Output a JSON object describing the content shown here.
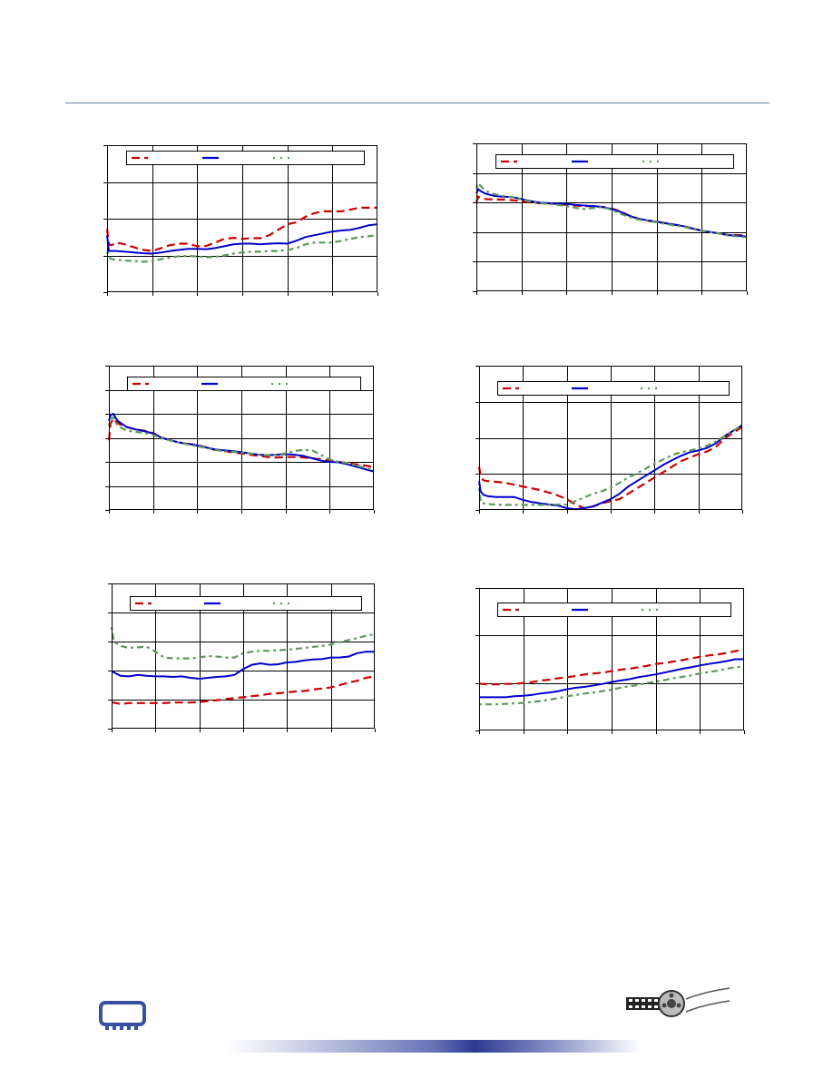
{
  "header": {
    "rule_color": "#6b7fae"
  },
  "colors": {
    "series_1": "#cc0000",
    "series_2": "#0000cc",
    "series_3": "#5a9a5a"
  },
  "chart_data": [
    {
      "type": "line",
      "x": [
        0,
        2,
        5,
        10,
        20,
        30,
        40,
        50,
        60,
        70,
        80,
        90,
        100,
        110,
        120,
        130,
        140,
        150,
        160,
        170,
        180,
        190,
        200,
        210,
        220,
        230,
        240,
        250,
        260,
        270,
        280,
        290,
        300
      ],
      "xlim": [
        0,
        300
      ],
      "ylim": [
        -1,
        3
      ],
      "series": [
        {
          "style": "dashed",
          "color": "#cc0000",
          "values": [
            0.72,
            0.3,
            0.28,
            0.35,
            0.3,
            0.22,
            0.15,
            0.12,
            0.2,
            0.28,
            0.32,
            0.32,
            0.25,
            0.26,
            0.35,
            0.45,
            0.48,
            0.45,
            0.47,
            0.47,
            0.55,
            0.7,
            0.85,
            0.9,
            1.05,
            1.15,
            1.2,
            1.2,
            1.2,
            1.25,
            1.3,
            1.3,
            1.3
          ]
        },
        {
          "style": "solid",
          "color": "#0000cc",
          "values": [
            0.55,
            0.12,
            0.12,
            0.12,
            0.1,
            0.08,
            0.06,
            0.05,
            0.08,
            0.12,
            0.15,
            0.18,
            0.18,
            0.17,
            0.2,
            0.25,
            0.3,
            0.32,
            0.32,
            0.3,
            0.32,
            0.33,
            0.32,
            0.4,
            0.5,
            0.55,
            0.6,
            0.65,
            0.68,
            0.7,
            0.75,
            0.82,
            0.85
          ]
        },
        {
          "style": "dotted",
          "color": "#5a9a5a",
          "values": [
            0.1,
            -0.05,
            -0.1,
            -0.12,
            -0.14,
            -0.15,
            -0.17,
            -0.16,
            -0.1,
            -0.06,
            -0.02,
            -0.01,
            -0.03,
            -0.05,
            -0.04,
            0.0,
            0.05,
            0.08,
            0.1,
            0.1,
            0.12,
            0.12,
            0.15,
            0.2,
            0.3,
            0.35,
            0.35,
            0.35,
            0.4,
            0.45,
            0.5,
            0.52,
            0.55
          ]
        }
      ]
    },
    {
      "type": "line",
      "x": [
        0,
        2,
        5,
        10,
        20,
        30,
        40,
        50,
        60,
        70,
        80,
        90,
        100,
        110,
        120,
        130,
        140,
        150,
        160,
        170,
        180,
        190,
        200,
        210,
        220,
        230,
        240,
        250,
        260,
        270,
        280,
        290,
        300
      ],
      "xlim": [
        0,
        300
      ],
      "ylim": [
        0,
        5
      ],
      "series": [
        {
          "style": "dashed",
          "color": "#cc0000",
          "values": [
            3.0,
            3.2,
            3.15,
            3.12,
            3.1,
            3.1,
            3.08,
            3.05,
            3.0,
            2.98,
            2.97,
            2.95,
            2.92,
            2.9,
            2.88,
            2.88,
            2.85,
            2.8,
            2.7,
            2.55,
            2.45,
            2.38,
            2.35,
            2.3,
            2.25,
            2.2,
            2.12,
            2.05,
            2.0,
            1.95,
            1.9,
            1.9,
            1.88
          ]
        },
        {
          "style": "solid",
          "color": "#0000cc",
          "values": [
            3.3,
            3.45,
            3.38,
            3.3,
            3.22,
            3.2,
            3.18,
            3.12,
            3.05,
            3.0,
            2.98,
            2.96,
            2.95,
            2.92,
            2.9,
            2.88,
            2.85,
            2.78,
            2.68,
            2.55,
            2.45,
            2.4,
            2.35,
            2.3,
            2.25,
            2.2,
            2.12,
            2.05,
            2.0,
            1.95,
            1.9,
            1.88,
            1.85
          ]
        },
        {
          "style": "dotted",
          "color": "#5a9a5a",
          "values": [
            3.5,
            3.65,
            3.55,
            3.4,
            3.28,
            3.22,
            3.18,
            3.1,
            3.03,
            2.98,
            2.95,
            2.92,
            2.88,
            2.82,
            2.78,
            2.82,
            2.85,
            2.75,
            2.62,
            2.5,
            2.42,
            2.38,
            2.33,
            2.28,
            2.22,
            2.18,
            2.1,
            2.05,
            2.0,
            1.95,
            1.88,
            1.85,
            1.82
          ]
        }
      ]
    },
    {
      "type": "line",
      "x": [
        0,
        2,
        5,
        10,
        20,
        30,
        40,
        50,
        60,
        70,
        80,
        90,
        100,
        110,
        120,
        130,
        140,
        150,
        160,
        170,
        180,
        190,
        200,
        210,
        220,
        230,
        240,
        250,
        260,
        270,
        280,
        290,
        300
      ],
      "xlim": [
        0,
        300
      ],
      "ylim": [
        0,
        6
      ],
      "series": [
        {
          "style": "dashed",
          "color": "#cc0000",
          "values": [
            2.9,
            3.6,
            3.8,
            3.6,
            3.45,
            3.35,
            3.3,
            3.2,
            3.0,
            2.9,
            2.8,
            2.75,
            2.7,
            2.6,
            2.5,
            2.45,
            2.4,
            2.35,
            2.3,
            2.25,
            2.2,
            2.18,
            2.2,
            2.2,
            2.18,
            2.15,
            2.1,
            2.05,
            2.0,
            1.95,
            1.9,
            1.85,
            1.78
          ]
        },
        {
          "style": "solid",
          "color": "#0000cc",
          "values": [
            3.7,
            3.95,
            4.0,
            3.7,
            3.45,
            3.35,
            3.28,
            3.18,
            3.0,
            2.9,
            2.8,
            2.75,
            2.68,
            2.6,
            2.52,
            2.48,
            2.45,
            2.4,
            2.35,
            2.3,
            2.28,
            2.3,
            2.32,
            2.3,
            2.25,
            2.15,
            2.05,
            2.0,
            1.98,
            1.9,
            1.8,
            1.7,
            1.6
          ]
        },
        {
          "style": "dotted",
          "color": "#5a9a5a",
          "values": [
            3.5,
            3.8,
            3.85,
            3.5,
            3.3,
            3.25,
            3.2,
            3.12,
            2.98,
            2.88,
            2.8,
            2.72,
            2.65,
            2.58,
            2.5,
            2.45,
            2.42,
            2.38,
            2.35,
            2.3,
            2.28,
            2.3,
            2.35,
            2.45,
            2.5,
            2.48,
            2.3,
            2.1,
            2.0,
            1.95,
            1.85,
            1.75,
            1.65
          ]
        }
      ]
    },
    {
      "type": "line",
      "x": [
        0,
        2,
        5,
        10,
        20,
        30,
        40,
        50,
        60,
        70,
        80,
        90,
        100,
        110,
        120,
        130,
        140,
        150,
        160,
        170,
        180,
        190,
        200,
        210,
        220,
        230,
        240,
        250,
        260,
        270,
        280,
        290,
        300
      ],
      "xlim": [
        0,
        300
      ],
      "ylim": [
        0,
        4
      ],
      "series": [
        {
          "style": "dashed",
          "color": "#cc0000",
          "values": [
            1.2,
            0.9,
            0.82,
            0.8,
            0.78,
            0.75,
            0.7,
            0.65,
            0.6,
            0.55,
            0.48,
            0.4,
            0.3,
            0.15,
            0.05,
            0.1,
            0.18,
            0.25,
            0.3,
            0.45,
            0.6,
            0.75,
            0.9,
            1.05,
            1.2,
            1.35,
            1.45,
            1.55,
            1.62,
            1.75,
            1.98,
            2.15,
            2.3
          ]
        },
        {
          "style": "solid",
          "color": "#0000cc",
          "values": [
            0.8,
            0.5,
            0.42,
            0.38,
            0.36,
            0.36,
            0.36,
            0.28,
            0.22,
            0.18,
            0.15,
            0.12,
            0.05,
            0.02,
            0.05,
            0.1,
            0.2,
            0.3,
            0.45,
            0.65,
            0.8,
            0.95,
            1.1,
            1.25,
            1.38,
            1.5,
            1.6,
            1.65,
            1.72,
            1.85,
            2.05,
            2.2,
            2.35
          ]
        },
        {
          "style": "dotted",
          "color": "#5a9a5a",
          "values": [
            0.6,
            0.2,
            0.18,
            0.16,
            0.15,
            0.14,
            0.14,
            0.14,
            0.14,
            0.14,
            0.14,
            0.15,
            0.15,
            0.25,
            0.35,
            0.45,
            0.52,
            0.62,
            0.75,
            0.9,
            1.02,
            1.15,
            1.28,
            1.4,
            1.52,
            1.6,
            1.65,
            1.7,
            1.78,
            1.9,
            2.05,
            2.2,
            2.35
          ]
        }
      ]
    },
    {
      "type": "line",
      "x": [
        0,
        2,
        5,
        10,
        20,
        30,
        40,
        50,
        60,
        70,
        80,
        90,
        100,
        110,
        120,
        130,
        140,
        150,
        160,
        170,
        180,
        190,
        200,
        210,
        220,
        230,
        240,
        250,
        260,
        270,
        280,
        290,
        300
      ],
      "xlim": [
        0,
        300
      ],
      "ylim": [
        0,
        5
      ],
      "series": [
        {
          "style": "dashed",
          "color": "#cc0000",
          "values": [
            0.9,
            0.9,
            0.88,
            0.85,
            0.88,
            0.88,
            0.88,
            0.88,
            0.88,
            0.9,
            0.9,
            0.9,
            0.92,
            0.95,
            0.98,
            1.02,
            1.05,
            1.08,
            1.12,
            1.15,
            1.2,
            1.22,
            1.25,
            1.28,
            1.3,
            1.35,
            1.38,
            1.42,
            1.5,
            1.58,
            1.65,
            1.75,
            1.8
          ]
        },
        {
          "style": "solid",
          "color": "#0000cc",
          "values": [
            2.0,
            1.95,
            1.9,
            1.82,
            1.8,
            1.85,
            1.82,
            1.8,
            1.8,
            1.78,
            1.8,
            1.75,
            1.72,
            1.75,
            1.78,
            1.8,
            1.85,
            2.05,
            2.2,
            2.25,
            2.2,
            2.22,
            2.28,
            2.3,
            2.35,
            2.38,
            2.4,
            2.45,
            2.45,
            2.48,
            2.6,
            2.65,
            2.65
          ]
        },
        {
          "style": "dotted",
          "color": "#5a9a5a",
          "values": [
            3.5,
            3.1,
            2.95,
            2.85,
            2.78,
            2.8,
            2.82,
            2.65,
            2.45,
            2.42,
            2.42,
            2.42,
            2.45,
            2.5,
            2.48,
            2.45,
            2.45,
            2.6,
            2.65,
            2.68,
            2.68,
            2.7,
            2.72,
            2.75,
            2.78,
            2.82,
            2.85,
            2.9,
            2.98,
            3.05,
            3.12,
            3.2,
            3.25
          ]
        }
      ]
    },
    {
      "type": "line",
      "x": [
        0,
        2,
        5,
        10,
        20,
        30,
        40,
        50,
        60,
        70,
        80,
        90,
        100,
        110,
        120,
        130,
        140,
        150,
        160,
        170,
        180,
        190,
        200,
        210,
        220,
        230,
        240,
        250,
        260,
        270,
        280,
        290,
        300
      ],
      "xlim": [
        0,
        300
      ],
      "ylim": [
        0,
        3
      ],
      "series": [
        {
          "style": "dashed",
          "color": "#cc0000",
          "values": [
            1.0,
            0.98,
            0.98,
            0.97,
            0.97,
            0.98,
            0.98,
            1.0,
            1.02,
            1.05,
            1.07,
            1.1,
            1.12,
            1.15,
            1.18,
            1.2,
            1.22,
            1.25,
            1.28,
            1.3,
            1.33,
            1.36,
            1.4,
            1.42,
            1.45,
            1.48,
            1.52,
            1.55,
            1.58,
            1.6,
            1.63,
            1.67,
            1.7
          ]
        },
        {
          "style": "solid",
          "color": "#0000cc",
          "values": [
            0.7,
            0.7,
            0.7,
            0.7,
            0.7,
            0.7,
            0.72,
            0.73,
            0.75,
            0.78,
            0.8,
            0.83,
            0.87,
            0.9,
            0.92,
            0.95,
            0.98,
            1.02,
            1.05,
            1.08,
            1.12,
            1.15,
            1.18,
            1.22,
            1.26,
            1.3,
            1.33,
            1.37,
            1.4,
            1.43,
            1.46,
            1.5,
            1.5
          ]
        },
        {
          "style": "dotted",
          "color": "#5a9a5a",
          "values": [
            0.55,
            0.55,
            0.55,
            0.55,
            0.55,
            0.56,
            0.57,
            0.58,
            0.6,
            0.62,
            0.65,
            0.68,
            0.72,
            0.75,
            0.78,
            0.8,
            0.83,
            0.86,
            0.9,
            0.93,
            0.96,
            1.0,
            1.03,
            1.06,
            1.1,
            1.13,
            1.16,
            1.2,
            1.23,
            1.26,
            1.3,
            1.33,
            1.35
          ]
        }
      ]
    }
  ]
}
